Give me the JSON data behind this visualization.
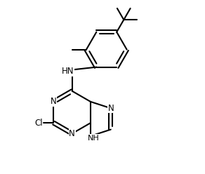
{
  "bg_color": "#ffffff",
  "line_color": "#000000",
  "line_width": 1.5,
  "font_size": 8.5,
  "figsize": [
    2.92,
    2.48
  ],
  "dpi": 100,
  "xlim": [
    0,
    10
  ],
  "ylim": [
    0,
    8.5
  ]
}
